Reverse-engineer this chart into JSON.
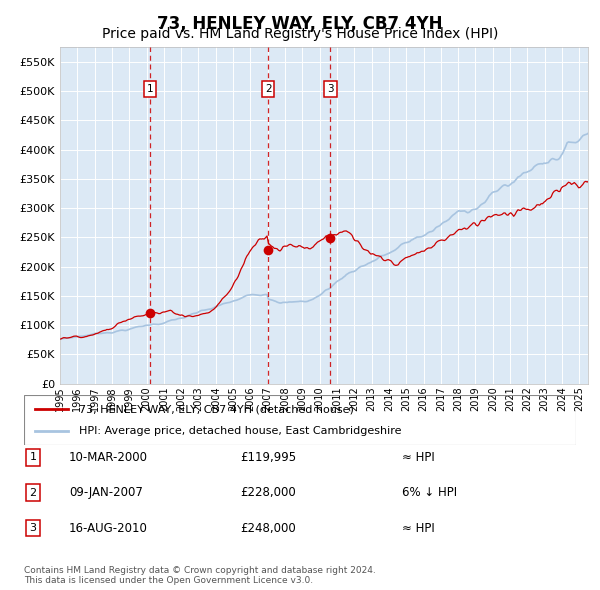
{
  "title": "73, HENLEY WAY, ELY, CB7 4YH",
  "subtitle": "Price paid vs. HM Land Registry's House Price Index (HPI)",
  "legend_line1": "73, HENLEY WAY, ELY, CB7 4YH (detached house)",
  "legend_line2": "HPI: Average price, detached house, East Cambridgeshire",
  "footer": "Contains HM Land Registry data © Crown copyright and database right 2024.\nThis data is licensed under the Open Government Licence v3.0.",
  "transactions": [
    {
      "num": 1,
      "date": "10-MAR-2000",
      "price": 119995,
      "rel": "≈ HPI"
    },
    {
      "num": 2,
      "date": "09-JAN-2007",
      "price": 228000,
      "rel": "6% ↓ HPI"
    },
    {
      "num": 3,
      "date": "16-AUG-2010",
      "price": 248000,
      "rel": "≈ HPI"
    }
  ],
  "transaction_dates_decimal": [
    2000.19,
    2007.03,
    2010.62
  ],
  "transaction_prices": [
    119995,
    228000,
    248000
  ],
  "ylim": [
    0,
    575000
  ],
  "yticks": [
    0,
    50000,
    100000,
    150000,
    200000,
    250000,
    300000,
    350000,
    400000,
    450000,
    500000,
    550000
  ],
  "hpi_color": "#a8c4e0",
  "price_color": "#cc0000",
  "dot_color": "#cc0000",
  "vline_color": "#cc0000",
  "plot_bg_color": "#dce9f5",
  "grid_color": "#ffffff",
  "box_color": "#cc0000",
  "title_fontsize": 12,
  "subtitle_fontsize": 10,
  "xlim_left": 1995.0,
  "xlim_right": 2025.5
}
